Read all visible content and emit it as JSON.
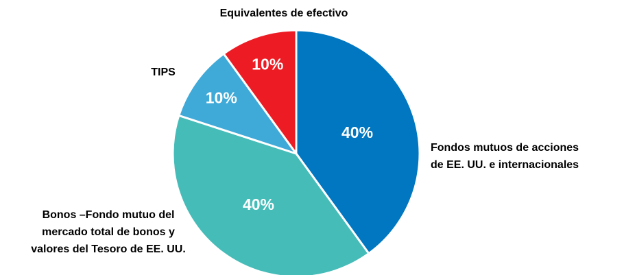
{
  "chart_data": {
    "type": "pie",
    "categories": [
      "Fondos mutuos de acciones\nde EE. UU. e internacionales",
      "Bonos –Fondo mutuo del\nmercado total de bonos y\nvalores del Tesoro de EE. UU.",
      "TIPS",
      "Equivalentes de efectivo"
    ],
    "values": [
      40,
      40,
      10,
      10
    ],
    "value_labels": [
      "40%",
      "40%",
      "10%",
      "10%"
    ],
    "colors": [
      "#0077c0",
      "#45bcb8",
      "#3fa9d8",
      "#ed1c24"
    ]
  }
}
